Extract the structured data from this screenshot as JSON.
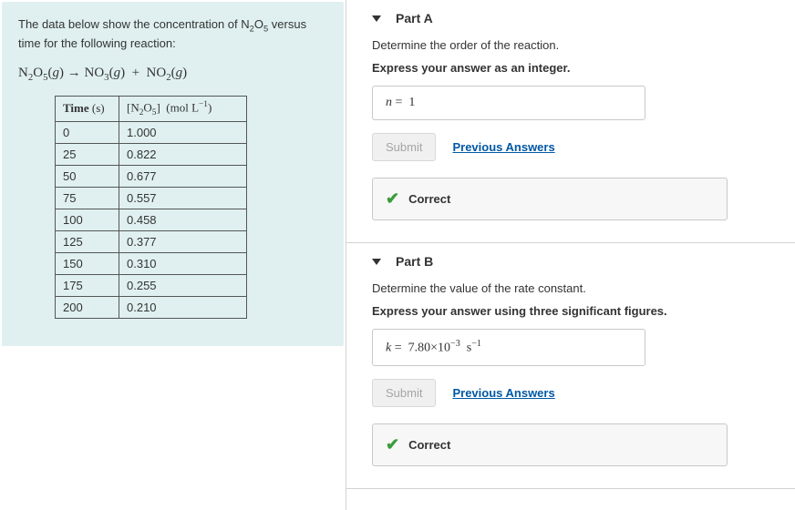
{
  "left": {
    "intro_prefix": "The data below show the concentration of ",
    "intro_suffix": " versus time for the following reaction:",
    "table": {
      "rows": [
        {
          "t": "0",
          "c": "1.000"
        },
        {
          "t": "25",
          "c": "0.822"
        },
        {
          "t": "50",
          "c": "0.677"
        },
        {
          "t": "75",
          "c": "0.557"
        },
        {
          "t": "100",
          "c": "0.458"
        },
        {
          "t": "125",
          "c": "0.377"
        },
        {
          "t": "150",
          "c": "0.310"
        },
        {
          "t": "175",
          "c": "0.255"
        },
        {
          "t": "200",
          "c": "0.210"
        }
      ]
    }
  },
  "partA": {
    "title": "Part A",
    "question": "Determine the order of the reaction.",
    "hint": "Express your answer as an integer.",
    "answer_value": "1",
    "submit": "Submit",
    "prev": "Previous Answers",
    "feedback": "Correct"
  },
  "partB": {
    "title": "Part B",
    "question": "Determine the value of the rate constant.",
    "hint": "Express your answer using three significant figures.",
    "submit": "Submit",
    "prev": "Previous Answers",
    "feedback": "Correct"
  },
  "colors": {
    "panel_bg": "#e0f0f1",
    "border": "#c8c8c8",
    "link": "#0058a5",
    "check": "#3a9c3a",
    "disabled_text": "#a6a6a6"
  }
}
